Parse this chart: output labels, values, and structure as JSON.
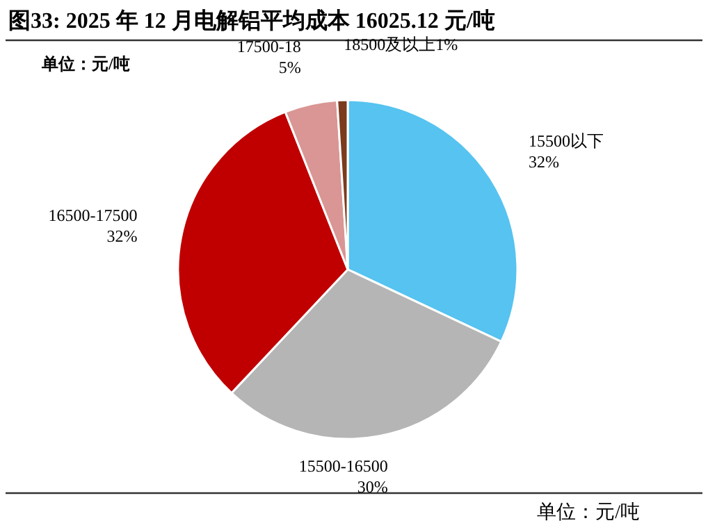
{
  "chart_data": {
    "type": "pie",
    "title": "图33:  2025 年 12 月电解铝平均成本 16025.12 元/吨",
    "subtitle": "单位：元/吨",
    "categories": [
      "15500以下",
      "15500-16500",
      "16500-17500",
      "17500-18",
      "18500及以上"
    ],
    "values": [
      32,
      30,
      32,
      5,
      1
    ],
    "value_labels": [
      "32%",
      "30%",
      "32%",
      "5%",
      "1%"
    ],
    "colors": [
      "#56c3f0",
      "#b5b5b5",
      "#c00000",
      "#d99694",
      "#7b3b1c"
    ],
    "annotations": [
      "单位：元/吨"
    ]
  }
}
